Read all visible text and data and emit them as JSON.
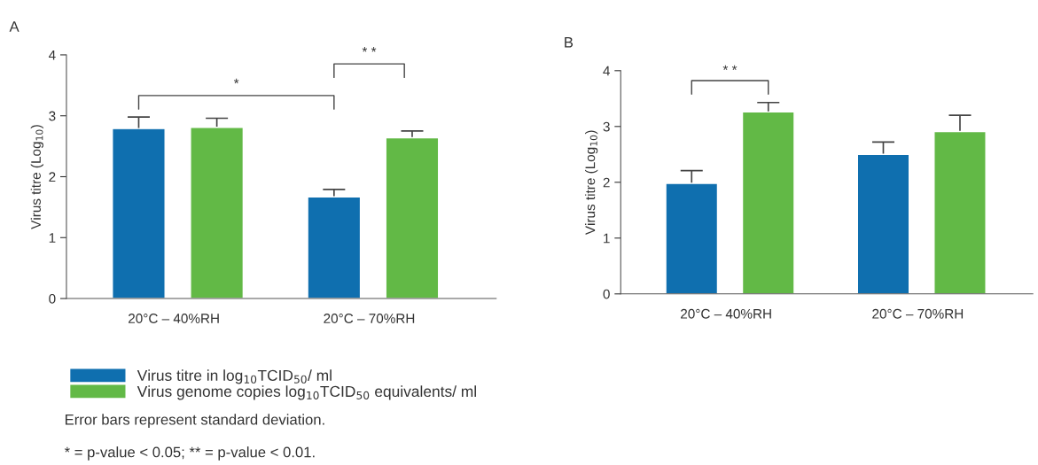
{
  "chart_data": [
    {
      "type": "bar",
      "title": "A",
      "ylabel": "Virus titre (Log$_{10}$)",
      "categories": [
        "20°C – 40%RH",
        "20°C – 70%RH"
      ],
      "series": [
        {
          "name": "Virus titre in log$_{10}$TCID$_{50}$/ ml",
          "color": "#0f6faf",
          "values": [
            2.79,
            1.67
          ],
          "errors": [
            0.19,
            0.12
          ]
        },
        {
          "name": "Virus genome copies log$_{10}$TCID$_{50}$ equivalents/ ml",
          "color": "#62b946",
          "values": [
            2.81,
            2.64
          ],
          "errors": [
            0.15,
            0.11
          ]
        }
      ],
      "ylim": [
        0,
        4
      ],
      "yticks": [
        0,
        1,
        2,
        3,
        4
      ],
      "grid": false,
      "legend": "bottom",
      "annotations": [
        "*",
        "* *",
        "Error bars represent standard deviation.",
        "* = p-value < 0.05; ** = p-value < 0.01."
      ]
    },
    {
      "type": "bar",
      "title": "B",
      "ylabel": "Virus titre (Log$_{10}$)",
      "categories": [
        "20°C – 40%RH",
        "20°C – 70%RH"
      ],
      "series": [
        {
          "color": "#0f6faf",
          "values": [
            1.98,
            2.5
          ],
          "errors": [
            0.23,
            0.22
          ]
        },
        {
          "color": "#62b946",
          "values": [
            3.26,
            2.91
          ],
          "errors": [
            0.17,
            0.29
          ]
        }
      ],
      "ylim": [
        0,
        4
      ],
      "yticks": [
        0,
        1,
        2,
        3,
        4
      ],
      "grid": false,
      "legend": false,
      "annotations": [
        "* *"
      ]
    }
  ]
}
